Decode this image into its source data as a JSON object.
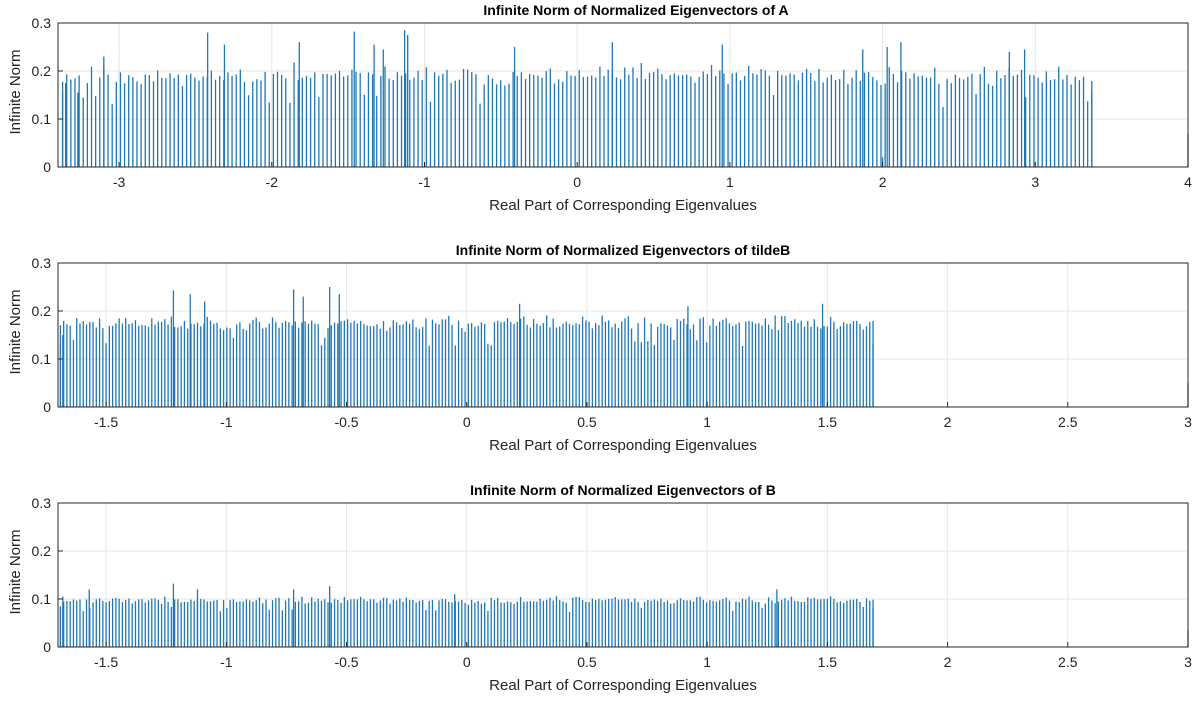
{
  "colors": {
    "stem": "#1f77b4",
    "grid": "#e6e6e6",
    "axis": "#262626"
  },
  "chart_data": [
    {
      "type": "bar",
      "title": "Infinite Norm of Normalized Eigenvectors of A",
      "xlabel": "Real Part of Corresponding Eigenvalues",
      "ylabel": "Infinite Norm",
      "xlim": [
        -3.4,
        4.0
      ],
      "ylim": [
        0,
        0.3
      ],
      "xticks": [
        -3,
        -2,
        -1,
        0,
        1,
        2,
        3,
        4
      ],
      "yticks": [
        0,
        0.1,
        0.2,
        0.3
      ],
      "grid": true,
      "series": [
        {
          "x_start": -3.37,
          "x_end": 3.37,
          "count": 250,
          "seed": 11,
          "base": 0.19,
          "spread": 0.03,
          "values": [
            [
              -3.37,
              0.155
            ],
            [
              -3.35,
              0.175
            ],
            [
              -3.27,
              0.155
            ],
            [
              -3.1,
              0.23
            ],
            [
              -2.42,
              0.28
            ],
            [
              -2.31,
              0.255
            ],
            [
              -1.82,
              0.26
            ],
            [
              -1.46,
              0.282
            ],
            [
              -1.33,
              0.255
            ],
            [
              -1.27,
              0.245
            ],
            [
              -1.13,
              0.285
            ],
            [
              -1.11,
              0.275
            ],
            [
              -0.41,
              0.25
            ],
            [
              0.23,
              0.26
            ],
            [
              0.95,
              0.255
            ],
            [
              1.87,
              0.245
            ],
            [
              2.0,
              0.02
            ],
            [
              2.03,
              0.25
            ],
            [
              2.12,
              0.26
            ],
            [
              2.83,
              0.24
            ],
            [
              2.93,
              0.245
            ],
            [
              3.37,
              0.155
            ],
            [
              4.0,
              0.07
            ]
          ]
        }
      ]
    },
    {
      "type": "bar",
      "title": "Infinite Norm of Normalized Eigenvectors of tildeB",
      "xlabel": "Real Part of Corresponding Eigenvalues",
      "ylabel": "Infinite Norm",
      "xlim": [
        -1.7,
        3.0
      ],
      "ylim": [
        0,
        0.3
      ],
      "xticks": [
        -1.5,
        -1,
        -0.5,
        0,
        0.5,
        1,
        1.5,
        2,
        2.5,
        3
      ],
      "yticks": [
        0,
        0.1,
        0.2,
        0.3
      ],
      "grid": true,
      "series": [
        {
          "x_start": -1.69,
          "x_end": 1.69,
          "count": 250,
          "seed": 23,
          "base": 0.175,
          "spread": 0.022,
          "values": [
            [
              -1.69,
              0.13
            ],
            [
              -1.68,
              0.15
            ],
            [
              -1.22,
              0.243
            ],
            [
              -1.15,
              0.235
            ],
            [
              -1.09,
              0.22
            ],
            [
              -0.72,
              0.245
            ],
            [
              -0.68,
              0.23
            ],
            [
              -0.57,
              0.25
            ],
            [
              -0.53,
              0.235
            ],
            [
              0.22,
              0.215
            ],
            [
              0.92,
              0.21
            ],
            [
              1.48,
              0.215
            ],
            [
              1.69,
              0.13
            ],
            [
              3.0,
              0.05
            ]
          ]
        }
      ]
    },
    {
      "type": "bar",
      "title": "Infinite Norm of Normalized Eigenvectors of B",
      "xlabel": "Real Part of Corresponding Eigenvalues",
      "ylabel": "Infinite Norm",
      "xlim": [
        -1.7,
        3.0
      ],
      "ylim": [
        0,
        0.3
      ],
      "xticks": [
        -1.5,
        -1,
        -0.5,
        0,
        0.5,
        1,
        1.5,
        2,
        2.5,
        3
      ],
      "yticks": [
        0,
        0.1,
        0.2,
        0.3
      ],
      "grid": true,
      "series": [
        {
          "x_start": -1.69,
          "x_end": 1.69,
          "count": 250,
          "seed": 37,
          "base": 0.097,
          "spread": 0.011,
          "values": [
            [
              -1.69,
              0.085
            ],
            [
              -1.68,
              0.105
            ],
            [
              -1.57,
              0.12
            ],
            [
              -1.22,
              0.132
            ],
            [
              -1.12,
              0.12
            ],
            [
              -0.72,
              0.12
            ],
            [
              -0.57,
              0.127
            ],
            [
              -0.05,
              0.11
            ],
            [
              1.29,
              0.12
            ],
            [
              1.69,
              0.08
            ],
            [
              3.0,
              0.035
            ]
          ]
        }
      ]
    }
  ]
}
